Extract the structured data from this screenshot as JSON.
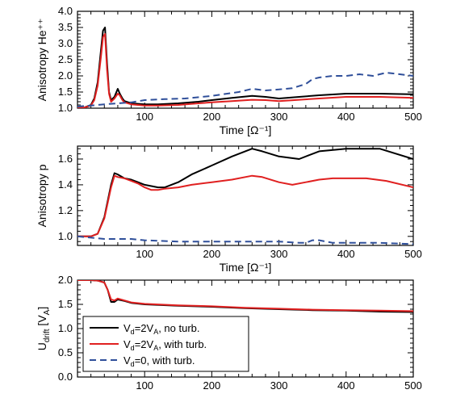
{
  "colors": {
    "series": [
      "#000000",
      "#e02020",
      "#2f4f9a"
    ],
    "axis": "#000000"
  },
  "chart_data": [
    {
      "type": "line",
      "xlabel": "Time [Ω⁻¹]",
      "ylabel": "Anisotropy He⁺⁺",
      "xlim": [
        0,
        500
      ],
      "ylim": [
        1.0,
        4.0
      ],
      "xticks": [
        100,
        200,
        300,
        400,
        500
      ],
      "yticks": [
        1.0,
        1.5,
        2.0,
        2.5,
        3.0,
        3.5,
        4.0
      ],
      "ytick_labels": [
        "1.0",
        "1.5",
        "2.0",
        "2.5",
        "3.0",
        "3.5",
        "4.0"
      ],
      "series": [
        {
          "style": "solid",
          "x": [
            0,
            10,
            20,
            25,
            30,
            35,
            38,
            41,
            44,
            47,
            50,
            55,
            60,
            63,
            67,
            70,
            80,
            100,
            120,
            150,
            180,
            200,
            230,
            260,
            280,
            300,
            330,
            360,
            400,
            450,
            500
          ],
          "y": [
            1.0,
            1.02,
            1.1,
            1.3,
            1.8,
            2.8,
            3.4,
            3.5,
            2.4,
            1.5,
            1.25,
            1.35,
            1.6,
            1.45,
            1.3,
            1.22,
            1.15,
            1.12,
            1.12,
            1.15,
            1.2,
            1.25,
            1.32,
            1.38,
            1.35,
            1.3,
            1.35,
            1.4,
            1.45,
            1.45,
            1.43
          ]
        },
        {
          "style": "solid",
          "x": [
            0,
            10,
            20,
            25,
            30,
            35,
            38,
            41,
            44,
            47,
            50,
            55,
            60,
            63,
            67,
            70,
            80,
            100,
            120,
            150,
            180,
            200,
            230,
            260,
            280,
            300,
            330,
            360,
            400,
            450,
            500
          ],
          "y": [
            1.0,
            1.02,
            1.08,
            1.25,
            1.7,
            2.6,
            3.2,
            3.3,
            2.2,
            1.45,
            1.2,
            1.3,
            1.45,
            1.4,
            1.25,
            1.18,
            1.12,
            1.08,
            1.08,
            1.1,
            1.15,
            1.18,
            1.22,
            1.26,
            1.25,
            1.22,
            1.26,
            1.3,
            1.35,
            1.35,
            1.32
          ]
        },
        {
          "style": "dashed",
          "x": [
            0,
            20,
            40,
            60,
            80,
            100,
            130,
            160,
            200,
            240,
            260,
            280,
            300,
            320,
            340,
            350,
            360,
            380,
            400,
            420,
            440,
            460,
            480,
            500
          ],
          "y": [
            1.05,
            1.08,
            1.12,
            1.15,
            1.18,
            1.25,
            1.28,
            1.3,
            1.38,
            1.5,
            1.6,
            1.55,
            1.58,
            1.62,
            1.75,
            1.9,
            1.95,
            2.0,
            2.0,
            2.05,
            2.0,
            2.1,
            2.05,
            2.0
          ]
        }
      ]
    },
    {
      "type": "line",
      "xlabel": "Time [Ω⁻¹]",
      "ylabel": "Anisotropy p",
      "xlim": [
        0,
        500
      ],
      "ylim": [
        0.93,
        1.7
      ],
      "xticks": [
        100,
        200,
        300,
        400,
        500
      ],
      "yticks": [
        1.0,
        1.2,
        1.4,
        1.6
      ],
      "ytick_labels": [
        "1.0",
        "1.2",
        "1.4",
        "1.6"
      ],
      "series": [
        {
          "style": "solid",
          "x": [
            0,
            20,
            30,
            40,
            50,
            55,
            60,
            70,
            80,
            90,
            100,
            110,
            120,
            130,
            150,
            170,
            200,
            230,
            260,
            275,
            300,
            330,
            360,
            400,
            450,
            500
          ],
          "y": [
            1.0,
            1.0,
            1.02,
            1.15,
            1.4,
            1.49,
            1.48,
            1.45,
            1.44,
            1.42,
            1.4,
            1.39,
            1.38,
            1.38,
            1.42,
            1.48,
            1.55,
            1.62,
            1.68,
            1.66,
            1.62,
            1.6,
            1.66,
            1.68,
            1.68,
            1.6
          ]
        },
        {
          "style": "solid",
          "x": [
            0,
            20,
            30,
            40,
            50,
            55,
            60,
            70,
            80,
            90,
            100,
            110,
            120,
            130,
            150,
            170,
            200,
            230,
            260,
            275,
            300,
            320,
            340,
            360,
            380,
            400,
            430,
            460,
            500
          ],
          "y": [
            1.0,
            1.0,
            1.02,
            1.14,
            1.38,
            1.47,
            1.46,
            1.45,
            1.43,
            1.41,
            1.38,
            1.36,
            1.36,
            1.37,
            1.38,
            1.4,
            1.42,
            1.44,
            1.47,
            1.46,
            1.42,
            1.4,
            1.42,
            1.44,
            1.45,
            1.45,
            1.45,
            1.43,
            1.38
          ]
        },
        {
          "style": "dashed",
          "x": [
            0,
            20,
            40,
            60,
            80,
            100,
            150,
            200,
            250,
            300,
            330,
            340,
            350,
            360,
            380,
            400,
            450,
            500
          ],
          "y": [
            1.0,
            0.99,
            0.98,
            0.98,
            0.98,
            0.97,
            0.96,
            0.96,
            0.96,
            0.96,
            0.95,
            0.95,
            0.97,
            0.97,
            0.95,
            0.95,
            0.95,
            0.94
          ]
        }
      ]
    },
    {
      "type": "line",
      "xlabel": "",
      "ylabel": "U_drift [V_A]",
      "ylabel_main": "U",
      "ylabel_sub": "drift",
      "ylabel_unit": "[V",
      "ylabel_unit_sub": "A",
      "ylabel_close": "]",
      "xlim": [
        0,
        500
      ],
      "ylim": [
        0.0,
        2.0
      ],
      "xticks": [
        100,
        200,
        300,
        400,
        500
      ],
      "yticks": [
        0.0,
        0.5,
        1.0,
        1.5,
        2.0
      ],
      "ytick_labels": [
        "0.0",
        "0.5",
        "1.0",
        "1.5",
        "2.0"
      ],
      "legend": {
        "placement": "bottom-left",
        "entries": [
          {
            "pre": "V",
            "sub": "d",
            "mid": "=2V",
            "sub2": "A",
            "post": ", no turb."
          },
          {
            "pre": "V",
            "sub": "d",
            "mid": "=2V",
            "sub2": "A",
            "post": ", with turb."
          },
          {
            "pre": "V",
            "sub": "d",
            "mid": "=0",
            "sub2": "",
            "post": ", with turb."
          }
        ]
      },
      "series": [
        {
          "style": "solid",
          "x": [
            0,
            20,
            30,
            40,
            45,
            50,
            55,
            60,
            70,
            80,
            100,
            150,
            200,
            250,
            300,
            350,
            400,
            450,
            500
          ],
          "y": [
            2.0,
            2.0,
            1.99,
            1.95,
            1.8,
            1.55,
            1.55,
            1.6,
            1.57,
            1.53,
            1.5,
            1.47,
            1.45,
            1.42,
            1.4,
            1.38,
            1.37,
            1.35,
            1.34
          ]
        },
        {
          "style": "solid",
          "x": [
            0,
            20,
            30,
            40,
            45,
            50,
            55,
            60,
            70,
            80,
            100,
            150,
            200,
            250,
            300,
            350,
            400,
            450,
            500
          ],
          "y": [
            2.0,
            2.0,
            1.99,
            1.95,
            1.8,
            1.6,
            1.58,
            1.62,
            1.58,
            1.54,
            1.51,
            1.48,
            1.46,
            1.43,
            1.41,
            1.39,
            1.38,
            1.37,
            1.36
          ]
        }
      ]
    }
  ]
}
